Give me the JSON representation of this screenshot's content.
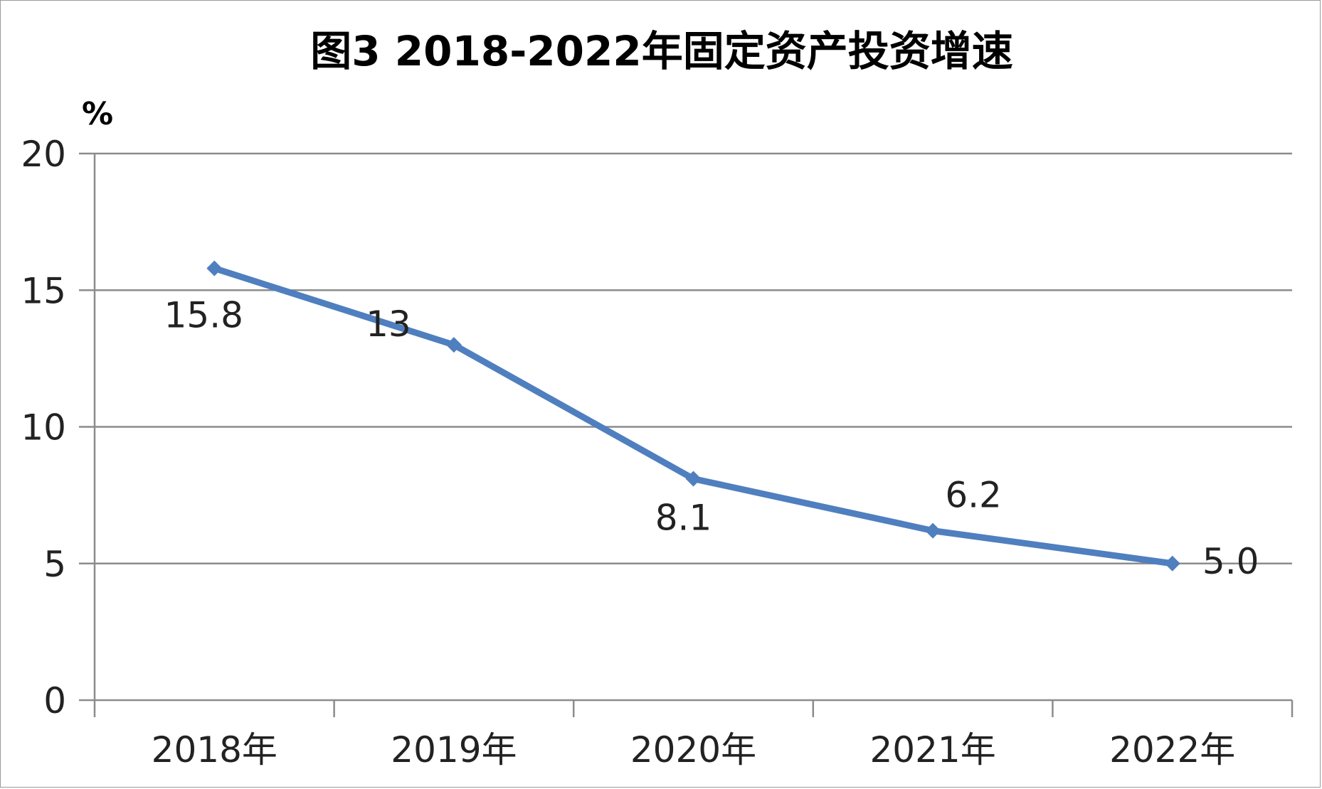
{
  "chart_data": {
    "type": "line",
    "title": "图3  2018-2022年固定资产投资增速",
    "unit_label": "%",
    "categories": [
      "2018年",
      "2019年",
      "2020年",
      "2021年",
      "2022年"
    ],
    "series": [
      {
        "values": [
          15.8,
          13,
          8.1,
          6.2,
          5.0
        ],
        "data_labels": [
          "15.8",
          "13",
          "8.1",
          "6.2",
          "5.0"
        ],
        "color": "#4f7fbf",
        "marker": "diamond"
      }
    ],
    "y_ticks": [
      "0",
      "5",
      "10",
      "15",
      "20"
    ],
    "ylim": [
      0,
      20
    ],
    "grid": true,
    "legend": "none"
  }
}
